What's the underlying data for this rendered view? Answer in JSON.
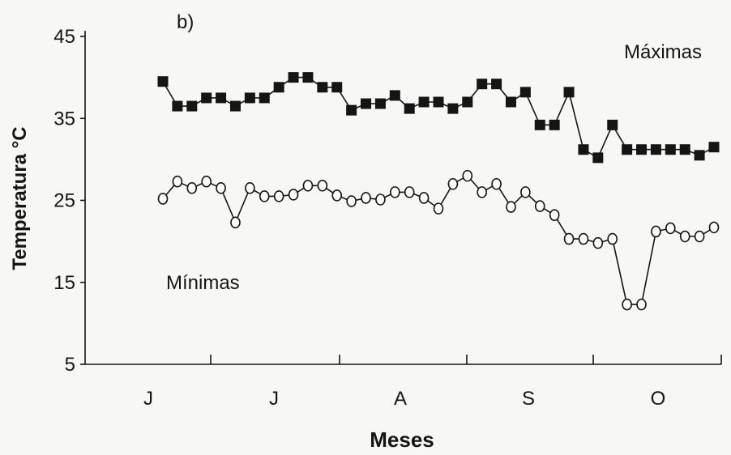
{
  "chart_data": {
    "type": "line",
    "panel_label": "b)",
    "xlabel": "Meses",
    "ylabel": "Temperatura °C",
    "ylim": [
      5,
      45
    ],
    "yticks": [
      5,
      15,
      25,
      35,
      45
    ],
    "months": [
      "J",
      "J",
      "A",
      "S",
      "O"
    ],
    "grid": false,
    "series": [
      {
        "name": "Máximas",
        "marker": "filled-square",
        "values": [
          39.5,
          36.5,
          36.5,
          37.5,
          37.5,
          36.5,
          37.5,
          37.5,
          38.8,
          40.0,
          40.0,
          38.8,
          38.8,
          36.0,
          36.8,
          36.8,
          37.8,
          36.2,
          37.0,
          37.0,
          36.2,
          37.0,
          39.2,
          39.2,
          37.0,
          38.2,
          34.2,
          34.2,
          38.2,
          31.2,
          30.2,
          34.2,
          31.2,
          31.2,
          31.2,
          31.2,
          31.2,
          30.5,
          31.5
        ]
      },
      {
        "name": "Mínimas",
        "marker": "open-circle",
        "values": [
          25.2,
          27.3,
          26.5,
          27.3,
          26.5,
          22.3,
          26.5,
          25.5,
          25.5,
          25.7,
          26.8,
          26.8,
          25.6,
          24.9,
          25.3,
          25.1,
          26.0,
          26.0,
          25.3,
          24.0,
          27.0,
          28.0,
          26.0,
          27.0,
          24.2,
          26.0,
          24.3,
          23.2,
          20.3,
          20.3,
          19.8,
          20.3,
          12.3,
          12.3,
          21.2,
          21.6,
          20.6,
          20.6,
          21.7
        ]
      }
    ]
  }
}
